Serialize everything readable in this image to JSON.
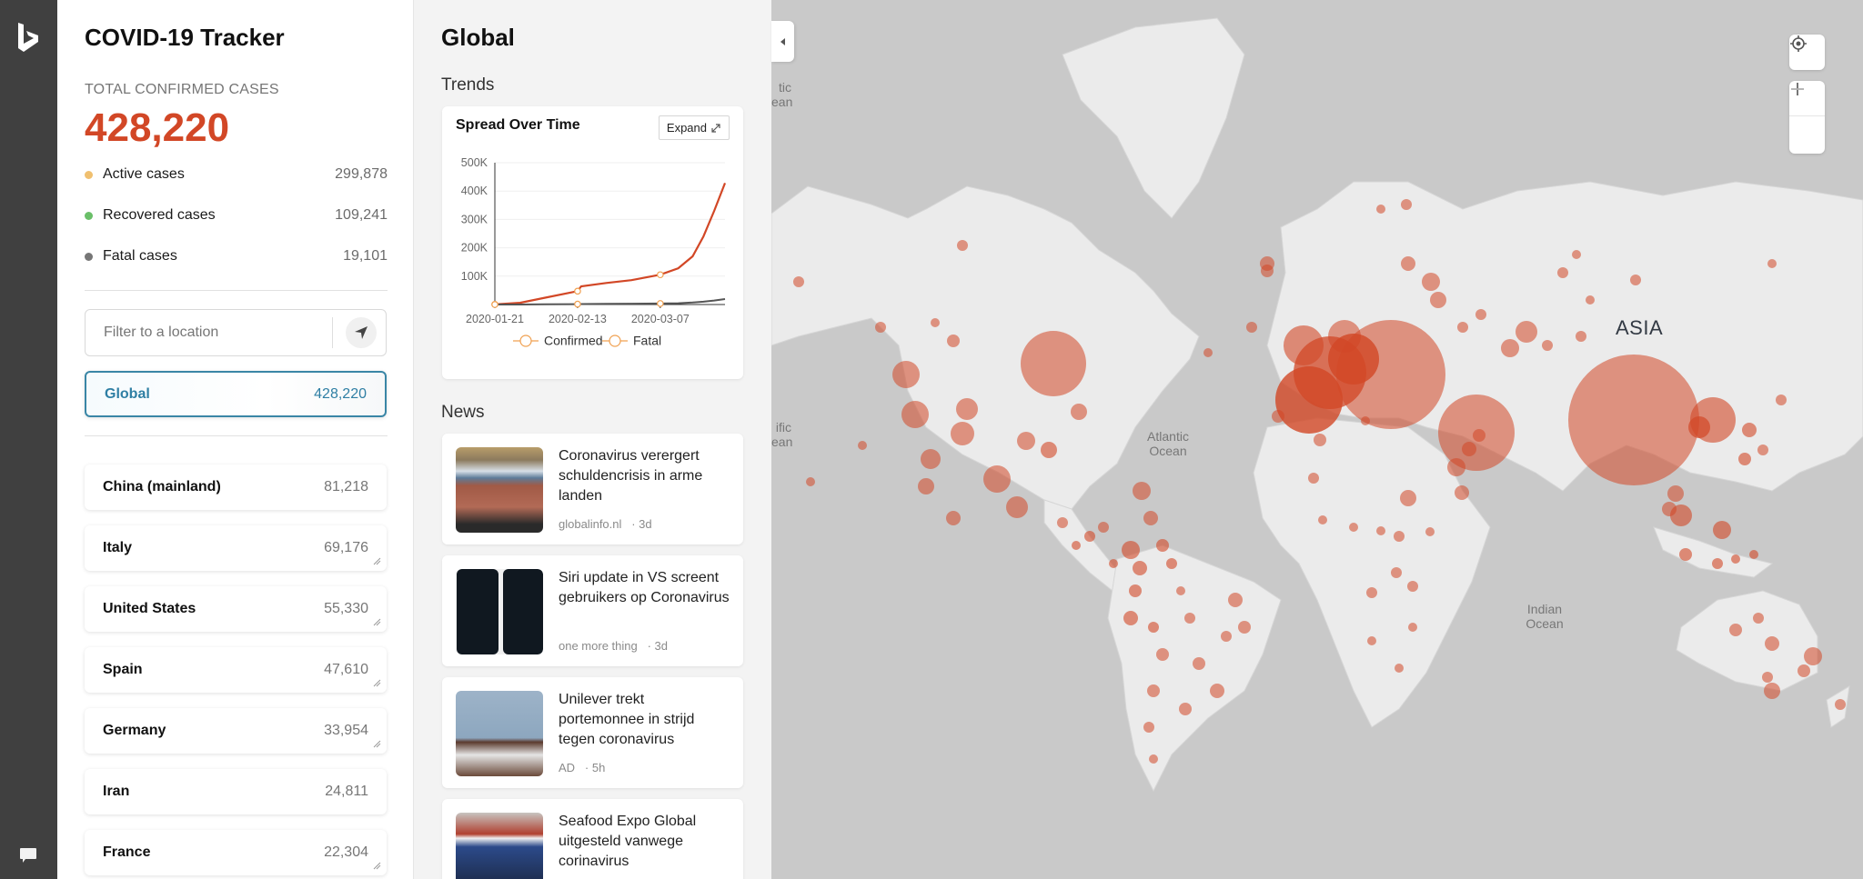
{
  "app": {
    "title": "COVID-19 Tracker"
  },
  "rail": {
    "logo_icon": "bing-logo-icon",
    "feedback_icon": "chat-bubble-icon"
  },
  "summary": {
    "total_label": "TOTAL CONFIRMED CASES",
    "total_value": "428,220",
    "stats": [
      {
        "label": "Active cases",
        "value": "299,878",
        "color": "#f0c070"
      },
      {
        "label": "Recovered cases",
        "value": "109,241",
        "color": "#6abf69"
      },
      {
        "label": "Fatal cases",
        "value": "19,101",
        "color": "#767676"
      }
    ]
  },
  "filter": {
    "placeholder": "Filter to a location",
    "locate_icon": "navigation-arrow-icon"
  },
  "locations": {
    "selected": {
      "name": "Global",
      "count": "428,220"
    },
    "list": [
      {
        "name": "China (mainland)",
        "count": "81,218"
      },
      {
        "name": "Italy",
        "count": "69,176"
      },
      {
        "name": "United States",
        "count": "55,330"
      },
      {
        "name": "Spain",
        "count": "47,610"
      },
      {
        "name": "Germany",
        "count": "33,954"
      },
      {
        "name": "Iran",
        "count": "24,811"
      },
      {
        "name": "France",
        "count": "22,304"
      }
    ]
  },
  "detail": {
    "title": "Global",
    "trends_label": "Trends",
    "news_label": "News",
    "chart_card": {
      "title": "Spread Over Time",
      "expand_label": "Expand"
    },
    "news": [
      {
        "headline": "Coronavirus verergert schuldencrisis in arme landen",
        "source": "globalinfo.nl",
        "age": "· 3d"
      },
      {
        "headline": "Siri update in VS screent gebruikers op Coronavirus",
        "source": "one more thing",
        "age": "· 3d"
      },
      {
        "headline": "Unilever trekt portemonnee in strijd tegen coronavirus",
        "source": "AD",
        "age": "· 5h"
      },
      {
        "headline": "Seafood Expo Global uitgesteld vanwege corinavirus",
        "source": "",
        "age": ""
      }
    ]
  },
  "chart_data": {
    "type": "line",
    "title": "Spread Over Time",
    "xlabel": "",
    "ylabel": "",
    "x_ticks": [
      "2020-01-21",
      "2020-02-13",
      "2020-03-07"
    ],
    "y_ticks": [
      "100K",
      "200K",
      "300K",
      "400K",
      "500K"
    ],
    "ylim": [
      0,
      500000
    ],
    "grid": true,
    "legend": [
      "Confirmed",
      "Fatal"
    ],
    "legend_position": "bottom",
    "x": [
      "2020-01-21",
      "2020-01-28",
      "2020-02-04",
      "2020-02-13",
      "2020-02-14",
      "2020-02-21",
      "2020-02-28",
      "2020-03-07",
      "2020-03-12",
      "2020-03-16",
      "2020-03-19",
      "2020-03-22",
      "2020-03-25"
    ],
    "series": [
      {
        "name": "Confirmed",
        "color": "#d24726",
        "values": [
          580,
          6000,
          24000,
          47000,
          64000,
          76000,
          86000,
          105000,
          128000,
          170000,
          240000,
          330000,
          428220
        ]
      },
      {
        "name": "Fatal",
        "color": "#555555",
        "values": [
          17,
          130,
          490,
          1380,
          1500,
          2250,
          2900,
          3600,
          4600,
          7000,
          10000,
          14000,
          19101
        ]
      }
    ]
  },
  "map": {
    "labels": {
      "asia": "ASIA",
      "atlantic": "Atlantic\nOcean",
      "indian": "Indian\nOcean",
      "arctic_partial": "tic\nean",
      "pacific_partial": "ific\nean"
    },
    "controls": {
      "locate_icon": "locate-me-icon",
      "zoom_in_icon": "plus-icon",
      "zoom_out_icon": "minus-icon"
    },
    "bubble_color": "#d24726"
  }
}
